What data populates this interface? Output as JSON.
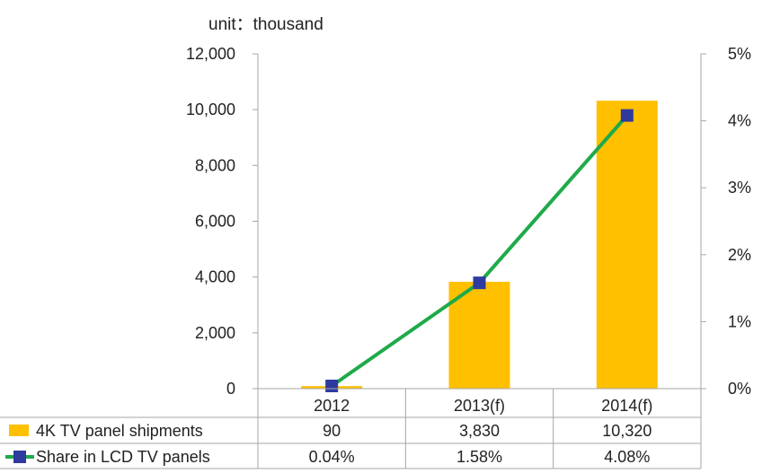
{
  "chart_data": {
    "type": "bar",
    "unit_label": "unit：thousand",
    "categories": [
      "2012",
      "2013(f)",
      "2014(f)"
    ],
    "series": [
      {
        "name": "4K TV panel shipments",
        "type": "bar",
        "axis": "left",
        "values": [
          90,
          3830,
          10320
        ],
        "color": "#FFC000"
      },
      {
        "name": "Share in LCD TV panels",
        "type": "line",
        "axis": "right",
        "values": [
          0.04,
          1.58,
          4.08
        ],
        "line_color": "#1FAA4A",
        "marker_color": "#2E3A9E"
      }
    ],
    "y_left": {
      "min": 0,
      "max": 12000,
      "ticks": [
        "0",
        "2,000",
        "4,000",
        "6,000",
        "8,000",
        "10,000",
        "12,000"
      ]
    },
    "y_right": {
      "min": 0,
      "max": 5,
      "ticks": [
        "0%",
        "1%",
        "2%",
        "3%",
        "4%",
        "5%"
      ]
    },
    "table": [
      {
        "label": "4K TV panel shipments",
        "values": [
          "90",
          "3,830",
          "10,320"
        ]
      },
      {
        "label": "Share in LCD TV panels",
        "values": [
          "0.04%",
          "1.58%",
          "4.08%"
        ]
      }
    ],
    "grid": false
  }
}
